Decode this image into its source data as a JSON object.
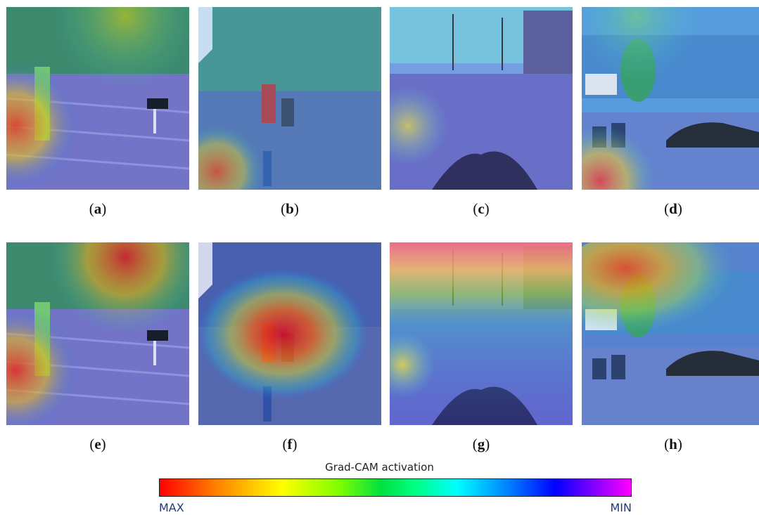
{
  "panels": [
    {
      "id": "a",
      "label": "a",
      "scene": "street",
      "overlay": "rowA1"
    },
    {
      "id": "b",
      "label": "b",
      "scene": "rescue",
      "overlay": "rowA2"
    },
    {
      "id": "c",
      "label": "c",
      "scene": "road",
      "overlay": "rowA3"
    },
    {
      "id": "d",
      "label": "d",
      "scene": "cars",
      "overlay": "rowA4"
    },
    {
      "id": "e",
      "label": "e",
      "scene": "street",
      "overlay": "rowB1"
    },
    {
      "id": "f",
      "label": "f",
      "scene": "rescue",
      "overlay": "rowB2"
    },
    {
      "id": "g",
      "label": "g",
      "scene": "road",
      "overlay": "rowB3"
    },
    {
      "id": "h",
      "label": "h",
      "scene": "cars",
      "overlay": "rowB4"
    }
  ],
  "colorbar": {
    "title": "Grad-CAM activation",
    "max_label": "MAX",
    "min_label": "MIN",
    "max_color": "#ff0000",
    "min_color": "#ff00ff",
    "label_color": "#1f3a7a"
  }
}
